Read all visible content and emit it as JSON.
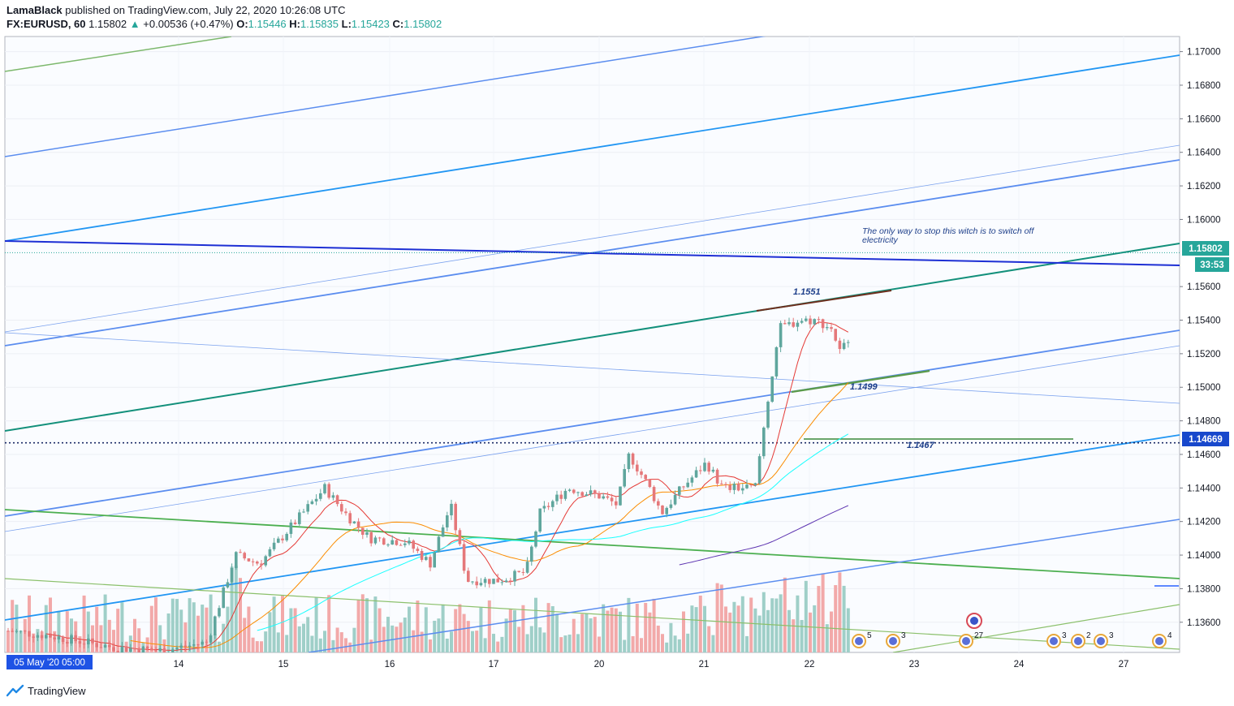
{
  "header": {
    "publisher": "LamaBlack",
    "published_text": "published on TradingView.com, July 22, 2020 10:26:08 UTC",
    "symbol": "FX:EURUSD, 60",
    "last": "1.15802",
    "change": "+0.00536 (+0.47%)",
    "o_label": "O:",
    "o_value": "1.15446",
    "h_label": "H:",
    "h_value": "1.15835",
    "l_label": "L:",
    "l_value": "1.15423",
    "c_label": "C:",
    "c_value": "1.15802"
  },
  "brand": "TradingView",
  "colors": {
    "up": "#5fa69d",
    "down": "#e5787a",
    "volume_up": "#9fcfc8",
    "volume_down": "#f2a9a9",
    "blue_trend": "#2962ff",
    "light_blue": "#5b8def",
    "green_trend": "#4caf50",
    "teal_trend": "#13907b",
    "navy": "#1d2fd4"
  },
  "annotations": {
    "note": "The only way to stop this witch is to switch off electricity",
    "level_1551": "1.1551",
    "level_1499": "1.1499",
    "level_1467": "1.1467"
  },
  "price_tags": {
    "current": "1.15802",
    "countdown": "33:53",
    "dotted_level": "1.14669"
  },
  "chart_data": {
    "type": "candlestick",
    "symbol": "FX:EURUSD",
    "interval": "60",
    "y_ticks": [
      "1.17000",
      "1.16800",
      "1.16600",
      "1.16400",
      "1.16200",
      "1.16000",
      "1.15600",
      "1.15400",
      "1.15200",
      "1.15000",
      "1.14800",
      "1.14600",
      "1.14400",
      "1.14200",
      "1.14000",
      "1.13800",
      "1.13600"
    ],
    "ylim": [
      1.1342,
      1.1709
    ],
    "x_ticks": [
      "05 May '20  05:00",
      "14",
      "15",
      "16",
      "17",
      "20",
      "21",
      "22",
      "23",
      "24",
      "27"
    ],
    "key_levels": [
      1.1551,
      1.1499,
      1.1467
    ],
    "last_price": 1.15802,
    "dotted_level": 1.14669,
    "open": 1.15446,
    "high": 1.15835,
    "low": 1.15423,
    "close": 1.15802
  }
}
